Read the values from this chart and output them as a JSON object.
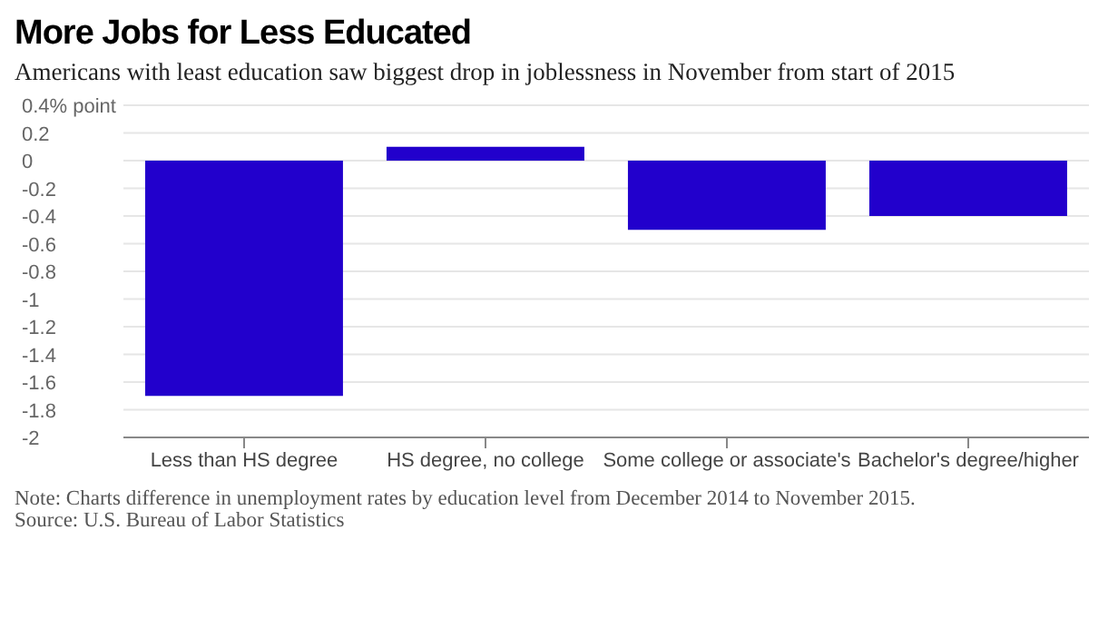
{
  "chart_data": {
    "type": "bar",
    "title": "More Jobs for Less Educated",
    "subtitle": "Americans with least education saw biggest drop in joblessness in November from start of 2015",
    "categories": [
      "Less than HS degree",
      "HS degree, no college",
      "Some college or associate's",
      "Bachelor's degree/higher"
    ],
    "values": [
      -1.7,
      0.1,
      -0.5,
      -0.4
    ],
    "color": "#2200cc",
    "ylim": [
      -2.0,
      0.4
    ],
    "yticks": [
      -2.0,
      -1.8,
      -1.6,
      -1.4,
      -1.2,
      -1.0,
      -0.8,
      -0.6,
      -0.4,
      -0.2,
      0,
      0.2,
      {
        "value": 0.4,
        "label": "0.4% point"
      }
    ],
    "grid": "y",
    "legend": false,
    "annotations": [
      "Note: Charts difference in unemployment rates by education level from December 2014 to November 2015.",
      "Source: U.S. Bureau of Labor Statistics"
    ]
  }
}
